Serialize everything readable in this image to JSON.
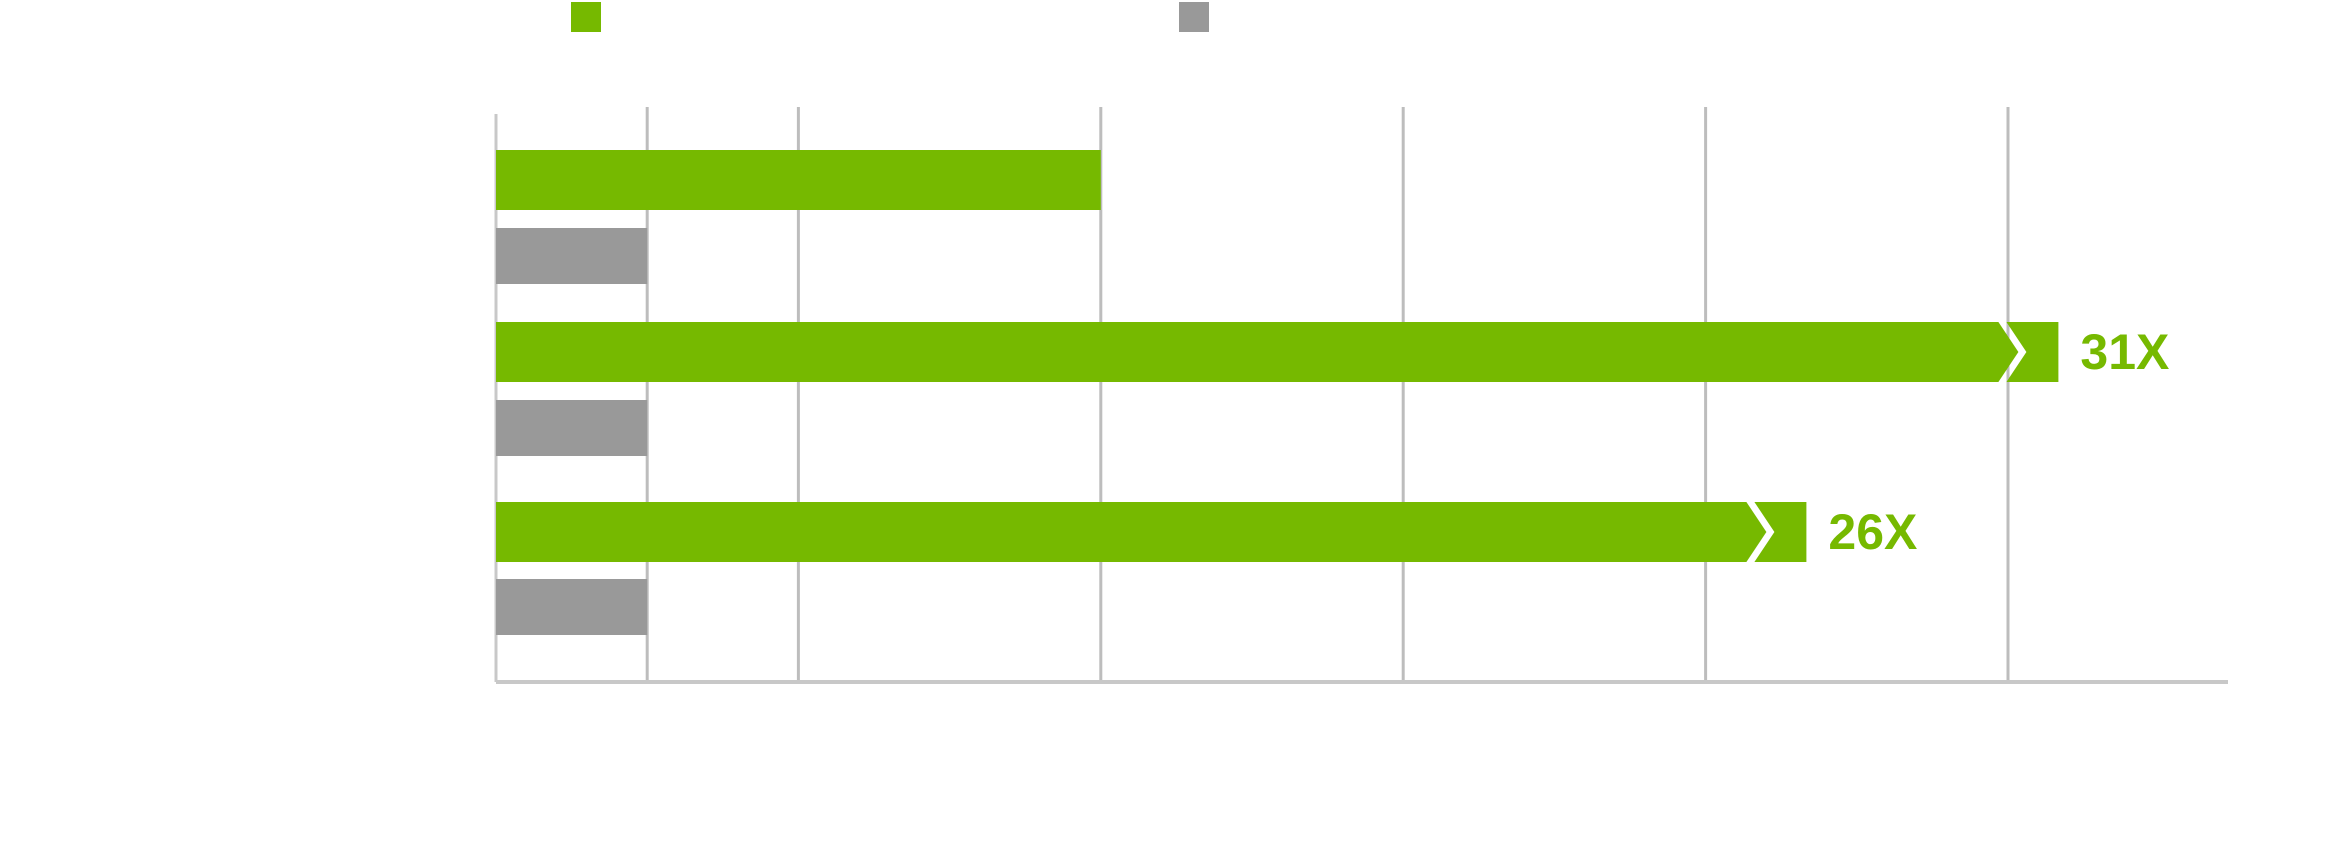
{
  "chart_data": {
    "type": "bar",
    "orientation": "horizontal",
    "title": "",
    "xlabel": "",
    "ylabel": "",
    "categories": [
      "",
      "",
      ""
    ],
    "xlim": [
      0,
      32
    ],
    "gridlines_x": [
      3,
      6,
      12,
      18,
      24,
      30
    ],
    "grid": true,
    "series": [
      {
        "values": [
          12,
          31,
          26
        ],
        "color": "#76b900",
        "value_labels": [
          "",
          "31X",
          "26X"
        ],
        "broken": [
          false,
          true,
          true
        ]
      },
      {
        "values": [
          3,
          3,
          3
        ],
        "color": "#999999"
      }
    ],
    "legend": {
      "position": "top",
      "entries": [
        {
          "label": "",
          "color": "#76b900"
        },
        {
          "label": "",
          "color": "#999999"
        }
      ]
    },
    "colors": {
      "axis": "#c8c8c8",
      "grid": "#bdbdbd"
    }
  }
}
